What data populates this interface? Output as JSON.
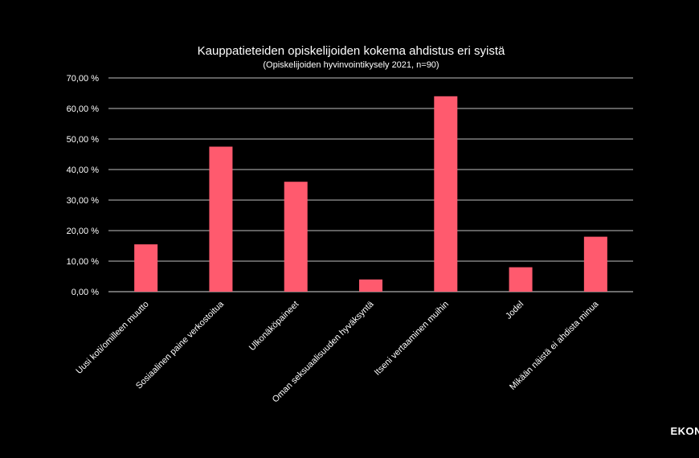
{
  "chart_data": {
    "type": "bar",
    "title": "Kauppatieteiden  opiskelijoiden  kokema  ahdistus  eri  syistä",
    "subtitle": "(Opiskelijoiden hyvinvointikysely  2021, n=90)",
    "categories": [
      "Uusi koti/omilleen muutto",
      "Sosiaalinen paine verkostoitua",
      "Ulkonäköpaineet",
      "Oman seksuaalisuuden hyväksyntä",
      "Itseni vertaaminen muihin",
      "Jodel",
      "Mikään näistä ei ahdista minua"
    ],
    "values": [
      15.5,
      47.5,
      36.0,
      4.0,
      64.0,
      8.0,
      18.0
    ],
    "ylim": [
      0,
      70
    ],
    "yticks": [
      "0,00 %",
      "10,00 %",
      "20,00 %",
      "30,00 %",
      "40,00 %",
      "50,00 %",
      "60,00 %",
      "70,00 %"
    ],
    "bar_color": "#ff5a6e",
    "grid": true,
    "xlabel": "",
    "ylabel": ""
  },
  "logo": {
    "text": "EKON"
  }
}
